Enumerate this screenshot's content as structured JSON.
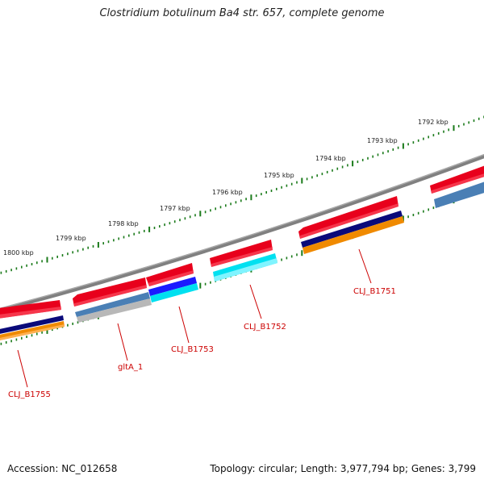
{
  "title": "Clostridium botulinum Ba4 str. 657, complete genome",
  "footer": {
    "accession": "Accession: NC_012658",
    "summary": "Topology: circular; Length: 3,977,794 bp; Genes: 3,799"
  },
  "ruler": {
    "labels": [
      "1800 kbp",
      "1799 kbp",
      "1798 kbp",
      "1797 kbp",
      "1796 kbp",
      "1795 kbp",
      "1794 kbp",
      "1793 kbp",
      "1792 kbp"
    ]
  },
  "genes": [
    {
      "label": "CLJ_B1755",
      "color": "#cc0000"
    },
    {
      "label": "gltA_1",
      "color": "#cc0000"
    },
    {
      "label": "CLJ_B1753",
      "color": "#cc0000"
    },
    {
      "label": "CLJ_B1752",
      "color": "#cc0000"
    },
    {
      "label": "CLJ_B1751",
      "color": "#cc0000"
    }
  ],
  "colors": {
    "backbone": "#808080",
    "gene_red": "#e8001c",
    "ticks": "#1a7a1a",
    "navy": "#0a0a7a",
    "orange": "#f08a00",
    "steelblue": "#4a7fb5",
    "cyan": "#00e0f0",
    "blue": "#1a1aff",
    "silver": "#b8b8b8"
  }
}
